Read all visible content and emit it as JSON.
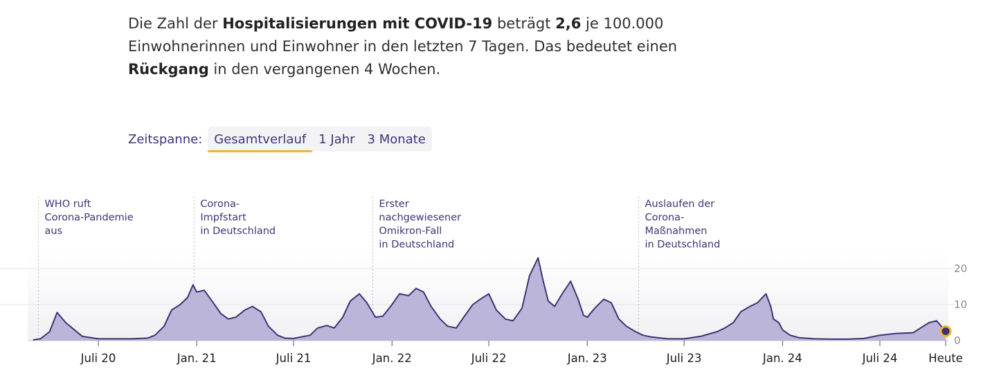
{
  "summary": {
    "p1": "Die Zahl der ",
    "b1": "Hospitalisierungen mit COVID-19",
    "p2": " beträgt ",
    "b2": "2,6",
    "p3": " je 100.000 Einwohnerinnen und Einwohner in den letzten 7 Tagen. Das bedeutet einen ",
    "b3": "Rückgang",
    "p4": " in den vergangenen 4 Wochen."
  },
  "zeitspanne": {
    "label": "Zeitspanne:",
    "tabs": [
      "Gesamtverlauf",
      "1 Jahr",
      "3 Monate"
    ],
    "active": "Gesamtverlauf"
  },
  "colors": {
    "line": "#3b3470",
    "fill": "#bcb5da",
    "highlight": "#f2b233",
    "annotation": "#3a3576"
  },
  "chart_data": {
    "type": "area",
    "ylim": [
      0,
      25
    ],
    "yticks": [
      0,
      10,
      20
    ],
    "xticks": [
      "Juli 20",
      "Jan. 21",
      "Juli 21",
      "Jan. 22",
      "Juli 22",
      "Jan. 23",
      "Juli 23",
      "Jan. 24",
      "Juli 24",
      "Heute"
    ],
    "x": [
      "2020-03-01",
      "2020-03-15",
      "2020-04-01",
      "2020-04-15",
      "2020-05-01",
      "2020-06-01",
      "2020-07-01",
      "2020-08-01",
      "2020-09-01",
      "2020-10-01",
      "2020-10-15",
      "2020-11-01",
      "2020-11-15",
      "2020-12-01",
      "2020-12-15",
      "2020-12-25",
      "2021-01-01",
      "2021-01-15",
      "2021-02-01",
      "2021-02-15",
      "2021-03-01",
      "2021-03-15",
      "2021-04-01",
      "2021-04-15",
      "2021-05-01",
      "2021-05-15",
      "2021-06-01",
      "2021-06-15",
      "2021-07-01",
      "2021-08-01",
      "2021-08-15",
      "2021-09-01",
      "2021-09-15",
      "2021-10-01",
      "2021-10-15",
      "2021-11-01",
      "2021-11-15",
      "2021-12-01",
      "2021-12-15",
      "2022-01-01",
      "2022-01-15",
      "2022-02-01",
      "2022-02-15",
      "2022-03-01",
      "2022-03-15",
      "2022-04-01",
      "2022-04-15",
      "2022-05-01",
      "2022-05-15",
      "2022-06-01",
      "2022-06-15",
      "2022-07-01",
      "2022-07-15",
      "2022-08-01",
      "2022-08-15",
      "2022-09-01",
      "2022-09-15",
      "2022-10-01",
      "2022-10-10",
      "2022-10-20",
      "2022-11-01",
      "2022-11-15",
      "2022-12-01",
      "2022-12-15",
      "2022-12-25",
      "2023-01-01",
      "2023-01-15",
      "2023-02-01",
      "2023-02-15",
      "2023-03-01",
      "2023-03-15",
      "2023-04-01",
      "2023-04-15",
      "2023-05-01",
      "2023-06-01",
      "2023-07-01",
      "2023-08-01",
      "2023-09-01",
      "2023-09-15",
      "2023-10-01",
      "2023-10-15",
      "2023-11-01",
      "2023-11-15",
      "2023-12-01",
      "2023-12-10",
      "2023-12-15",
      "2023-12-25",
      "2024-01-01",
      "2024-01-15",
      "2024-02-01",
      "2024-03-01",
      "2024-04-01",
      "2024-05-01",
      "2024-06-01",
      "2024-07-01",
      "2024-08-01",
      "2024-09-01",
      "2024-09-15",
      "2024-10-01",
      "2024-10-15",
      "2024-11-01"
    ],
    "values": [
      0.2,
      0.5,
      2.5,
      7.8,
      5.0,
      1.2,
      0.5,
      0.5,
      0.5,
      0.7,
      1.5,
      4.0,
      8.5,
      10.0,
      12.0,
      15.5,
      13.5,
      14.0,
      10.5,
      7.5,
      6.0,
      6.5,
      8.5,
      9.5,
      8.0,
      4.0,
      1.5,
      0.7,
      0.6,
      1.5,
      3.5,
      4.2,
      3.5,
      6.5,
      11.0,
      13.0,
      10.5,
      6.5,
      6.8,
      10.0,
      13.0,
      12.5,
      14.5,
      13.5,
      9.5,
      6.0,
      4.0,
      3.5,
      6.5,
      10.0,
      11.5,
      13.0,
      8.5,
      6.0,
      5.5,
      9.0,
      18.0,
      23.0,
      17.0,
      11.0,
      9.5,
      13.0,
      16.5,
      11.5,
      7.0,
      6.5,
      9.0,
      11.5,
      10.5,
      6.0,
      4.0,
      2.5,
      1.5,
      1.0,
      0.5,
      0.5,
      1.2,
      2.5,
      3.5,
      5.0,
      8.0,
      9.5,
      10.5,
      13.0,
      9.5,
      6.0,
      5.0,
      3.0,
      1.5,
      0.8,
      0.5,
      0.4,
      0.4,
      0.6,
      1.5,
      2.0,
      2.2,
      3.5,
      5.0,
      5.5,
      2.6
    ],
    "annotations": [
      {
        "date": "2020-03-11",
        "lines": [
          "WHO ruft",
          "Corona-Pandemie",
          "aus"
        ]
      },
      {
        "date": "2020-12-27",
        "lines": [
          "Corona-",
          "Impfstart",
          "in Deutschland"
        ]
      },
      {
        "date": "2021-11-26",
        "lines": [
          "Erster",
          "nachgewiesener",
          "Omikron-Fall",
          "in Deutschland"
        ]
      },
      {
        "date": "2023-04-07",
        "lines": [
          "Auslaufen der",
          "Corona-",
          "Maßnahmen",
          "in Deutschland"
        ]
      }
    ],
    "current": {
      "date": "2024-11-01",
      "value": 2.6
    }
  }
}
